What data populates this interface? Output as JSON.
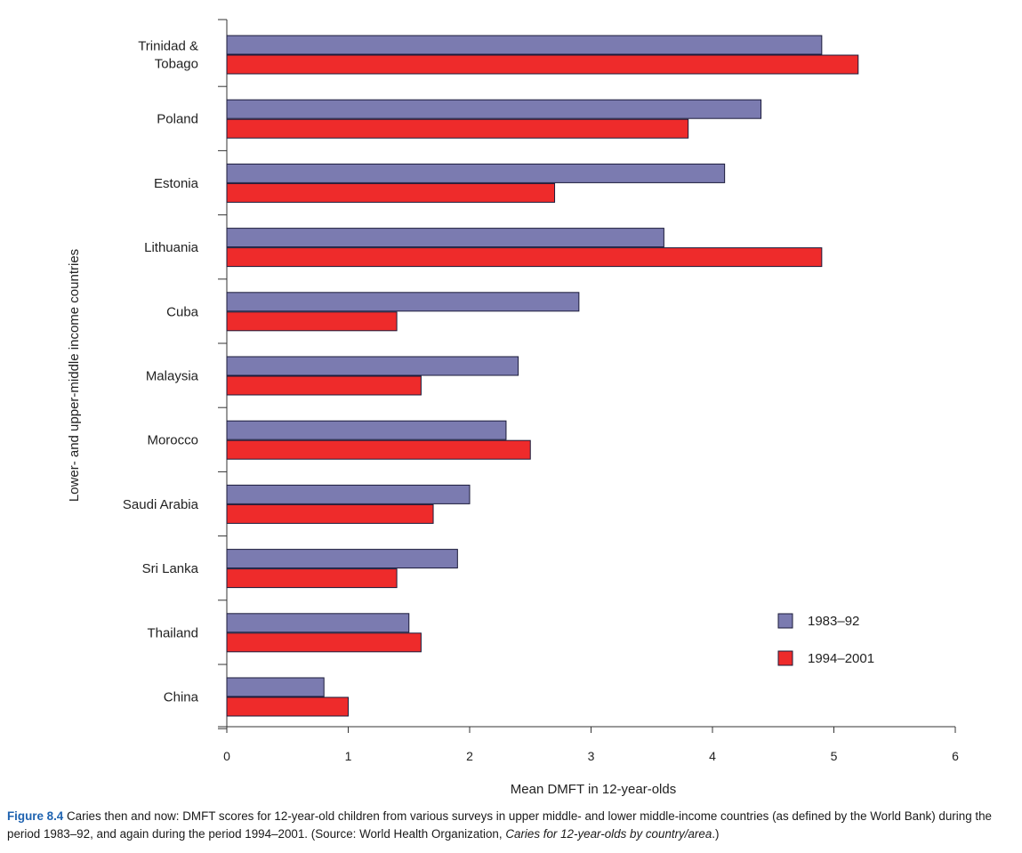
{
  "chart_data": {
    "type": "bar",
    "orientation": "horizontal",
    "categories": [
      "Trinidad & Tobago",
      "Poland",
      "Estonia",
      "Lithuania",
      "Cuba",
      "Malaysia",
      "Morocco",
      "Saudi Arabia",
      "Sri Lanka",
      "Thailand",
      "China"
    ],
    "category_lines": [
      [
        "Trinidad &",
        "Tobago"
      ],
      [
        "Poland"
      ],
      [
        "Estonia"
      ],
      [
        "Lithuania"
      ],
      [
        "Cuba"
      ],
      [
        "Malaysia"
      ],
      [
        "Morocco"
      ],
      [
        "Saudi Arabia"
      ],
      [
        "Sri Lanka"
      ],
      [
        "Thailand"
      ],
      [
        "China"
      ]
    ],
    "series": [
      {
        "name": "1983–92",
        "color": "#7b7bb0",
        "values": [
          4.9,
          4.4,
          4.1,
          3.6,
          2.9,
          2.4,
          2.3,
          2.0,
          1.9,
          1.5,
          0.8
        ]
      },
      {
        "name": "1994–2001",
        "color": "#ee2b2b",
        "values": [
          5.2,
          3.8,
          2.7,
          4.9,
          1.4,
          1.6,
          2.5,
          1.7,
          1.4,
          1.6,
          1.0
        ]
      }
    ],
    "xlabel": "Mean DMFT in 12-year-olds",
    "ylabel": "Lower- and upper-middle income countries",
    "xlim": [
      0,
      6
    ],
    "xticks": [
      0,
      1,
      2,
      3,
      4,
      5,
      6
    ],
    "grid": false,
    "legend_position": "bottom-right"
  },
  "caption": {
    "figure_number": "Figure 8.4",
    "text": " Caries then and now: DMFT scores for 12-year-old children from various surveys in upper middle- and lower middle-income countries (as defined by the World Bank) during the period 1983–92, and again during the period 1994–2001. (Source: World Health Organization, ",
    "source_title": "Caries for 12-year-olds by country/area",
    "end": ".)"
  }
}
